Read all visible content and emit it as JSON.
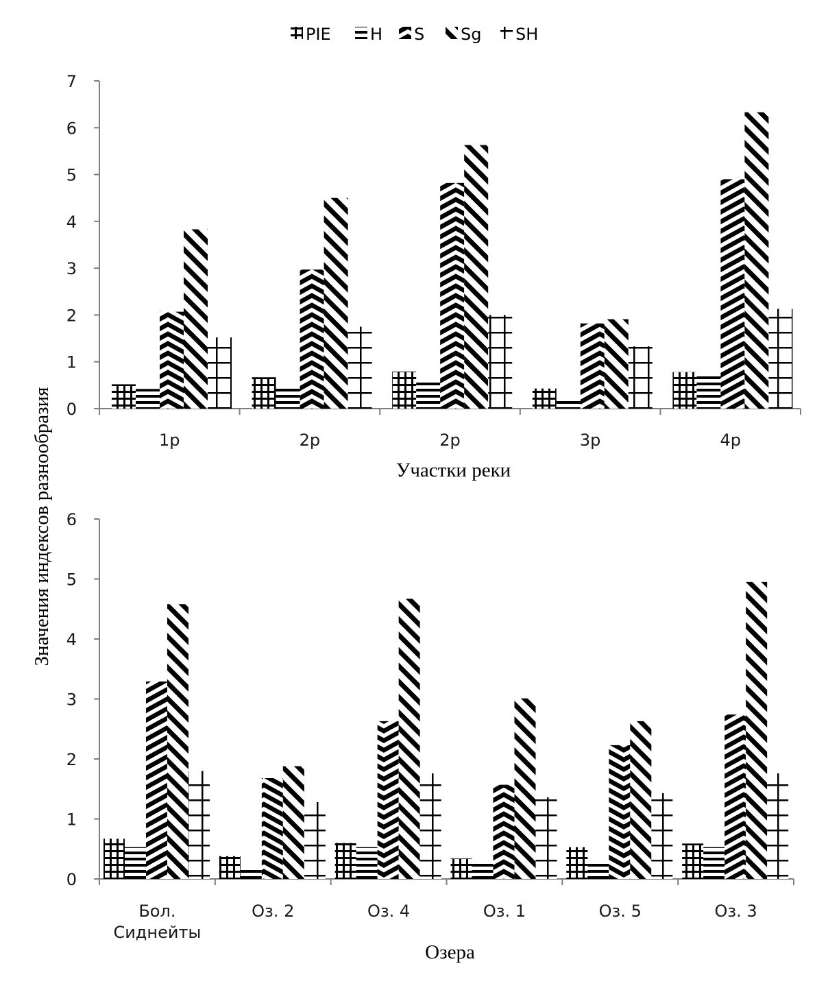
{
  "legend": [
    {
      "key": "PIE",
      "label": "PIE",
      "pattern": "grid"
    },
    {
      "key": "H",
      "label": "H",
      "pattern": "hlines"
    },
    {
      "key": "S",
      "label": "S",
      "pattern": "chevron"
    },
    {
      "key": "Sg",
      "label": "Sg",
      "pattern": "backdiag"
    },
    {
      "key": "SH",
      "label": "SH",
      "pattern": "cross"
    }
  ],
  "ylabel": "Значения индексов  разнообразия",
  "chart_data": [
    {
      "type": "bar",
      "title": "",
      "xlabel": "Участки реки",
      "ylabel": "Значения индексов  разнообразия",
      "ylim": [
        0,
        7
      ],
      "yticks": [
        0,
        1,
        2,
        3,
        4,
        5,
        6,
        7
      ],
      "grid": false,
      "legend_position": "top",
      "categories": [
        "1р",
        "2р",
        "2р",
        "3р",
        "4р"
      ],
      "series": [
        {
          "name": "PIE",
          "values": [
            0.52,
            0.67,
            0.79,
            0.43,
            0.78
          ]
        },
        {
          "name": "H",
          "values": [
            0.42,
            0.49,
            0.63,
            0.17,
            0.72
          ]
        },
        {
          "name": "S",
          "values": [
            2.07,
            2.97,
            4.82,
            1.82,
            4.9
          ]
        },
        {
          "name": "Sg",
          "values": [
            3.83,
            4.5,
            5.63,
            1.91,
            6.33
          ]
        },
        {
          "name": "SH",
          "values": [
            1.52,
            1.75,
            2.0,
            1.33,
            2.13
          ]
        }
      ]
    },
    {
      "type": "bar",
      "title": "",
      "xlabel": "Озера",
      "ylabel": "Значения индексов  разнообразия",
      "ylim": [
        0,
        6
      ],
      "yticks": [
        0,
        1,
        2,
        3,
        4,
        5,
        6
      ],
      "grid": false,
      "categories": [
        "Бол. Сиднейты",
        "Оз. 2",
        "Оз. 4",
        "Оз. 1",
        "Оз. 5",
        "Оз. 3"
      ],
      "series": [
        {
          "name": "PIE",
          "values": [
            0.67,
            0.38,
            0.6,
            0.34,
            0.53,
            0.59
          ]
        },
        {
          "name": "H",
          "values": [
            0.53,
            0.18,
            0.53,
            0.3,
            0.3,
            0.53
          ]
        },
        {
          "name": "S",
          "values": [
            3.29,
            1.68,
            2.63,
            1.57,
            2.23,
            2.74
          ]
        },
        {
          "name": "Sg",
          "values": [
            4.58,
            1.88,
            4.67,
            3.01,
            2.63,
            4.95
          ]
        },
        {
          "name": "SH",
          "values": [
            1.8,
            1.28,
            1.76,
            1.36,
            1.43,
            1.76
          ]
        }
      ]
    }
  ]
}
